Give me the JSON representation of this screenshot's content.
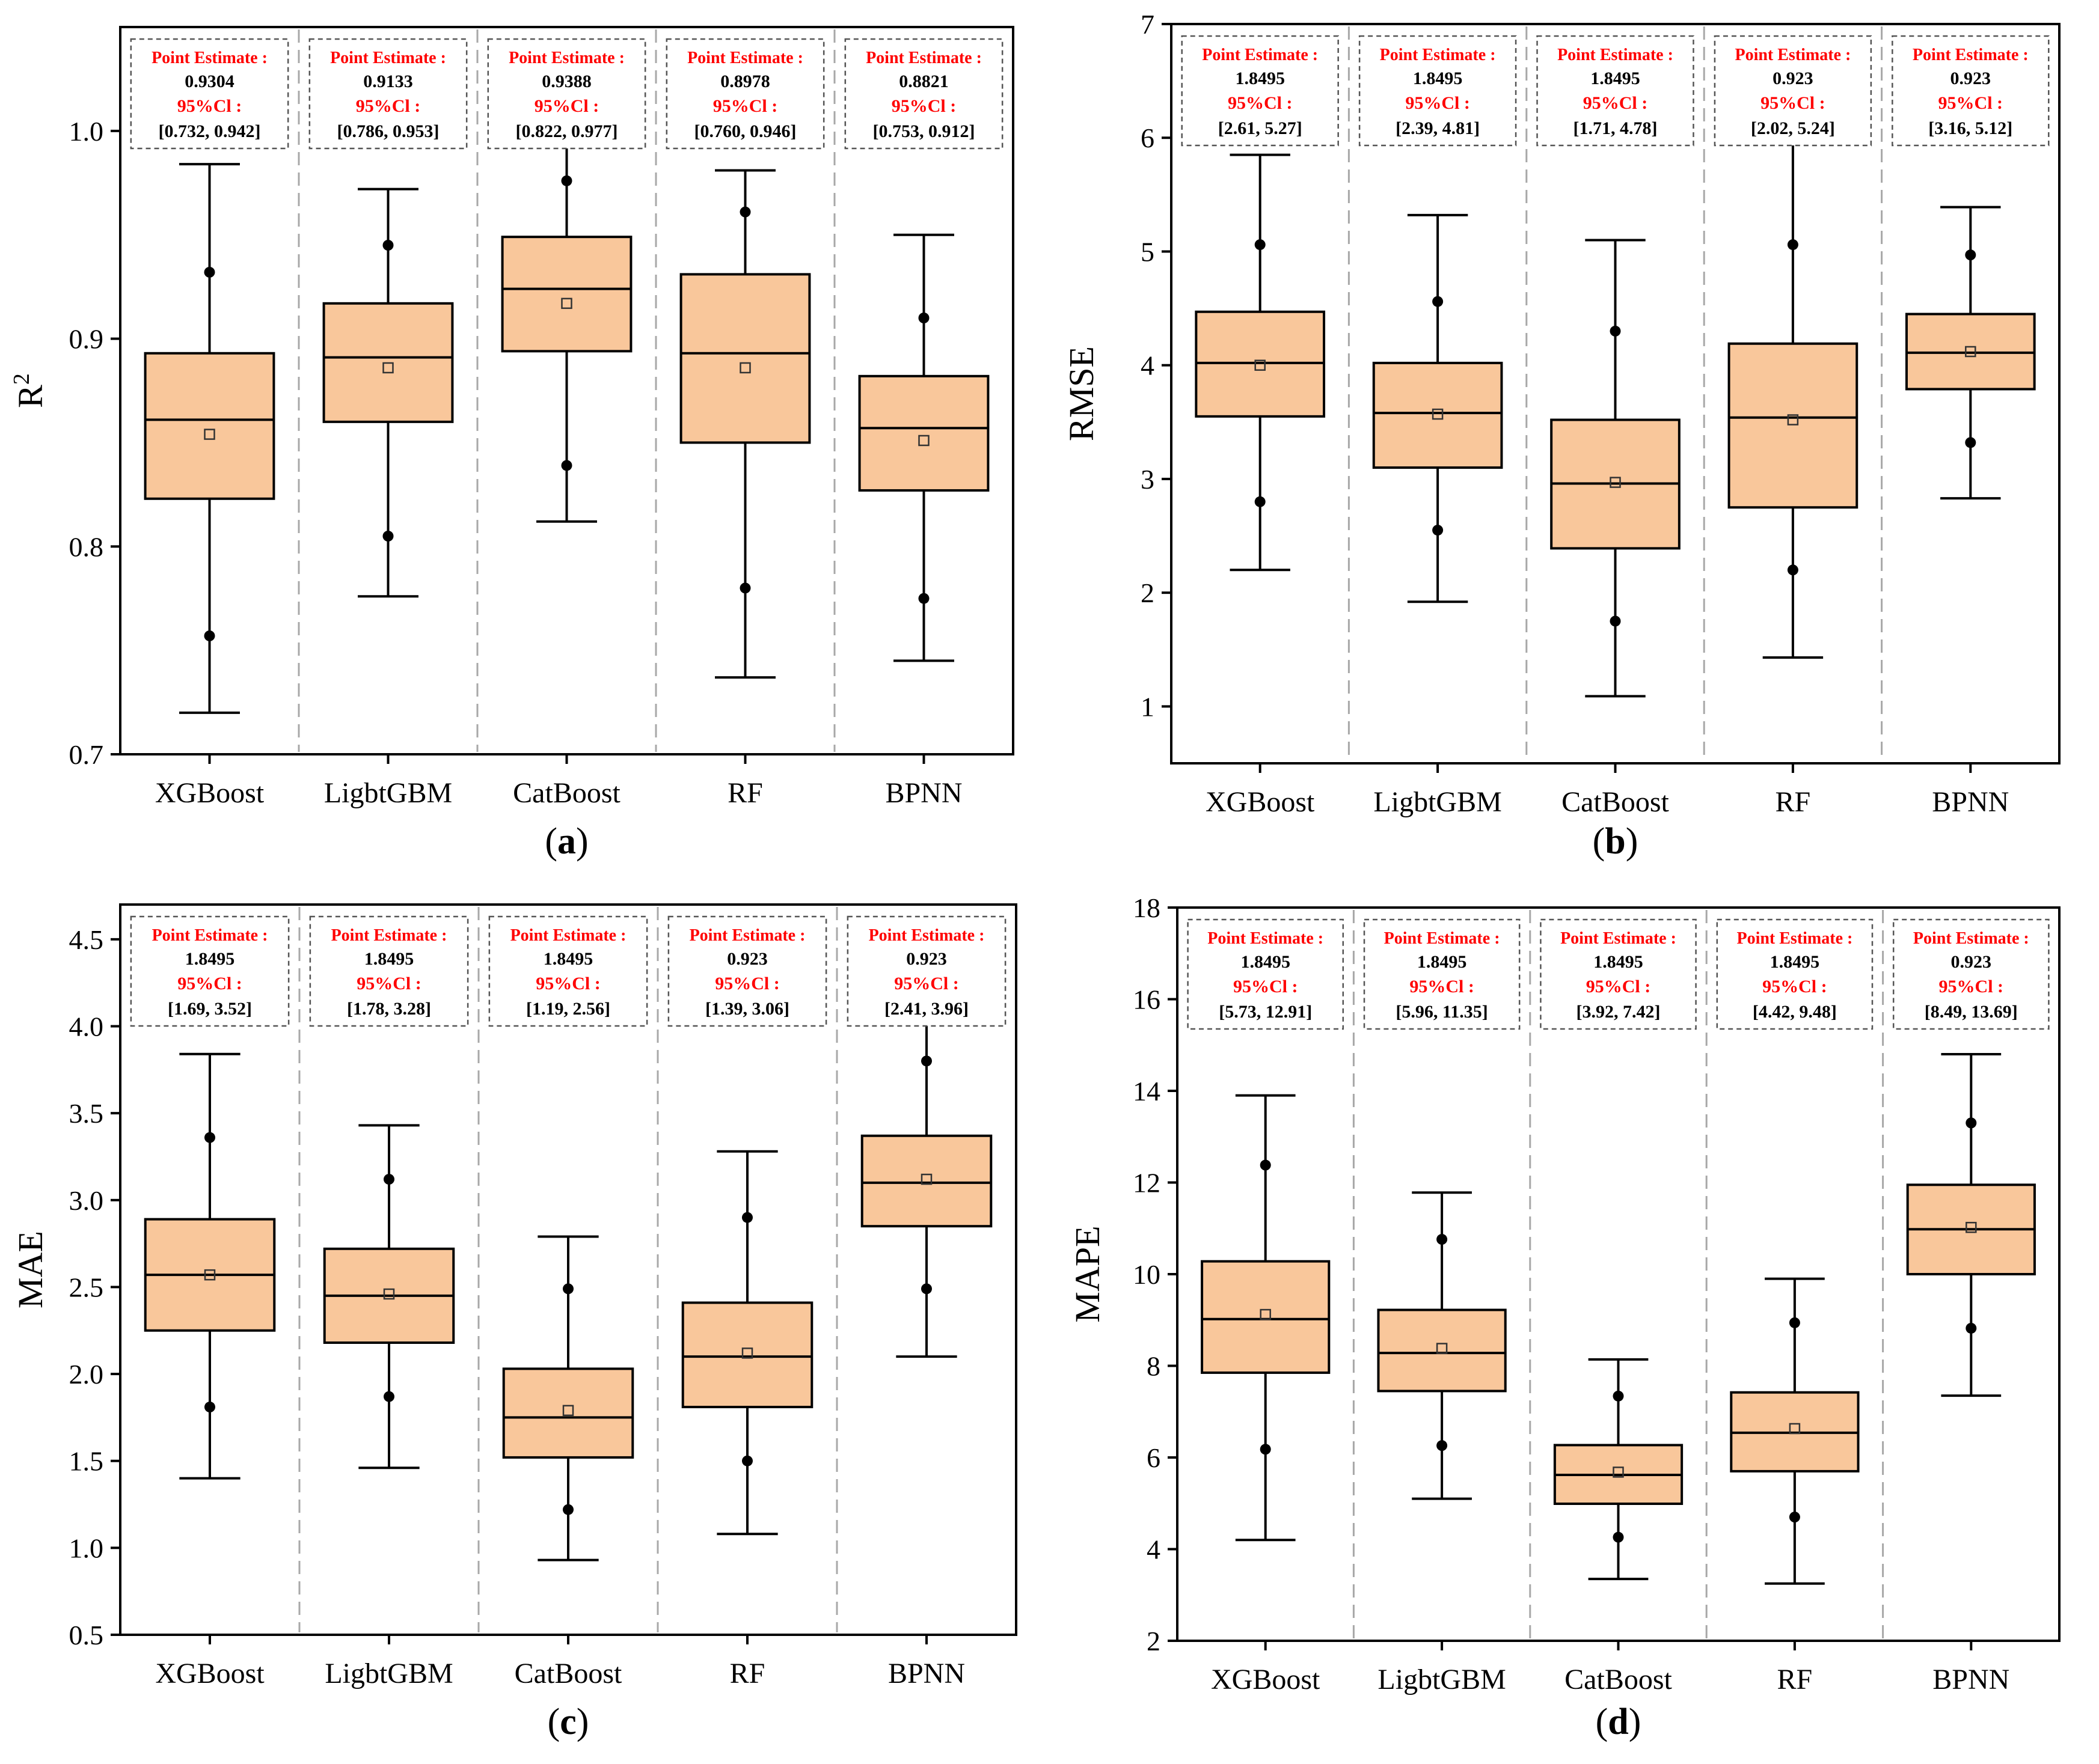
{
  "colors": {
    "box_fill": "#f9c79b",
    "box_stroke": "#000000",
    "separator": "#a8a8a8",
    "annotation_label": "#ff0000",
    "annotation_text": "#000000",
    "annotation_border": "#555555"
  },
  "annotation_labels": {
    "point_estimate": "Point Estimate :",
    "ci": "95%Cl :"
  },
  "chart_data": [
    {
      "panel_label": "(a)",
      "type": "box",
      "ylabel_base": "R",
      "ylabel_sup": "2",
      "ylim": [
        0.7,
        1.05
      ],
      "yticks": [
        0.7,
        0.8,
        0.9,
        1.0
      ],
      "ytick_labels": [
        "0.7",
        "0.8",
        "0.9",
        "1.0"
      ],
      "categories": [
        "XGBoost",
        "LigbtGBM",
        "CatBoost",
        "RF",
        "BPNN"
      ],
      "boxes": [
        {
          "whisker_low": 0.72,
          "q1": 0.823,
          "median": 0.861,
          "q3": 0.893,
          "whisker_high": 0.984,
          "mean": 0.854,
          "p_low": 0.757,
          "p_high": 0.932
        },
        {
          "whisker_low": 0.776,
          "q1": 0.86,
          "median": 0.891,
          "q3": 0.917,
          "whisker_high": 0.972,
          "mean": 0.886,
          "p_low": 0.805,
          "p_high": 0.945
        },
        {
          "whisker_low": 0.812,
          "q1": 0.894,
          "median": 0.924,
          "q3": 0.949,
          "whisker_high": 0.993,
          "mean": 0.917,
          "p_low": 0.839,
          "p_high": 0.976
        },
        {
          "whisker_low": 0.737,
          "q1": 0.85,
          "median": 0.893,
          "q3": 0.931,
          "whisker_high": 0.981,
          "mean": 0.886,
          "p_low": 0.78,
          "p_high": 0.961
        },
        {
          "whisker_low": 0.745,
          "q1": 0.827,
          "median": 0.857,
          "q3": 0.882,
          "whisker_high": 0.95,
          "mean": 0.851,
          "p_low": 0.775,
          "p_high": 0.91
        }
      ],
      "annotations": [
        {
          "point_estimate": "0.9304",
          "ci": "[0.732, 0.942]"
        },
        {
          "point_estimate": "0.9133",
          "ci": "[0.786, 0.953]"
        },
        {
          "point_estimate": "0.9388",
          "ci": "[0.822, 0.977]"
        },
        {
          "point_estimate": "0.8978",
          "ci": "[0.760, 0.946]"
        },
        {
          "point_estimate": "0.8821",
          "ci": "[0.753, 0.912]"
        }
      ]
    },
    {
      "panel_label": "(b)",
      "type": "box",
      "ylabel_base": "RMSE",
      "ylabel_sup": "",
      "ylim": [
        0.5,
        7
      ],
      "yticks": [
        1,
        2,
        3,
        4,
        5,
        6,
        7
      ],
      "ytick_labels": [
        "1",
        "2",
        "3",
        "4",
        "5",
        "6",
        "7"
      ],
      "categories": [
        "XGBoost",
        "LigbtGBM",
        "CatBoost",
        "RF",
        "BPNN"
      ],
      "boxes": [
        {
          "whisker_low": 2.2,
          "q1": 3.55,
          "median": 4.02,
          "q3": 4.47,
          "whisker_high": 5.85,
          "mean": 4.0,
          "p_low": 2.8,
          "p_high": 5.06
        },
        {
          "whisker_low": 1.92,
          "q1": 3.1,
          "median": 3.58,
          "q3": 4.02,
          "whisker_high": 5.32,
          "mean": 3.57,
          "p_low": 2.55,
          "p_high": 4.56
        },
        {
          "whisker_low": 1.09,
          "q1": 2.39,
          "median": 2.96,
          "q3": 3.52,
          "whisker_high": 5.1,
          "mean": 2.97,
          "p_low": 1.75,
          "p_high": 4.3
        },
        {
          "whisker_low": 1.43,
          "q1": 2.75,
          "median": 3.54,
          "q3": 4.19,
          "whisker_high": 6.0,
          "mean": 3.52,
          "p_low": 2.2,
          "p_high": 5.06
        },
        {
          "whisker_low": 2.83,
          "q1": 3.79,
          "median": 4.11,
          "q3": 4.45,
          "whisker_high": 5.39,
          "mean": 4.12,
          "p_low": 3.32,
          "p_high": 4.97
        }
      ],
      "annotations": [
        {
          "point_estimate": "1.8495",
          "ci": "[2.61, 5.27]"
        },
        {
          "point_estimate": "1.8495",
          "ci": "[2.39, 4.81]"
        },
        {
          "point_estimate": "1.8495",
          "ci": "[1.71, 4.78]"
        },
        {
          "point_estimate": "0.923",
          "ci": "[2.02, 5.24]"
        },
        {
          "point_estimate": "0.923",
          "ci": "[3.16, 5.12]"
        }
      ]
    },
    {
      "panel_label": "(c)",
      "type": "box",
      "ylabel_base": "MAE",
      "ylabel_sup": "",
      "ylim": [
        0.5,
        4.7
      ],
      "yticks": [
        0.5,
        1.0,
        1.5,
        2.0,
        2.5,
        3.0,
        3.5,
        4.0,
        4.5
      ],
      "ytick_labels": [
        "0.5",
        "1.0",
        "1.5",
        "2.0",
        "2.5",
        "3.0",
        "3.5",
        "4.0",
        "4.5"
      ],
      "categories": [
        "XGBoost",
        "LigbtGBM",
        "CatBoost",
        "RF",
        "BPNN"
      ],
      "boxes": [
        {
          "whisker_low": 1.4,
          "q1": 2.25,
          "median": 2.57,
          "q3": 2.89,
          "whisker_high": 3.84,
          "mean": 2.57,
          "p_low": 1.81,
          "p_high": 3.36
        },
        {
          "whisker_low": 1.46,
          "q1": 2.18,
          "median": 2.45,
          "q3": 2.72,
          "whisker_high": 3.43,
          "mean": 2.46,
          "p_low": 1.87,
          "p_high": 3.12
        },
        {
          "whisker_low": 0.93,
          "q1": 1.52,
          "median": 1.75,
          "q3": 2.03,
          "whisker_high": 2.79,
          "mean": 1.79,
          "p_low": 1.22,
          "p_high": 2.49
        },
        {
          "whisker_low": 1.08,
          "q1": 1.81,
          "median": 2.1,
          "q3": 2.41,
          "whisker_high": 3.28,
          "mean": 2.12,
          "p_low": 1.5,
          "p_high": 2.9
        },
        {
          "whisker_low": 2.1,
          "q1": 2.85,
          "median": 3.1,
          "q3": 3.37,
          "whisker_high": 4.08,
          "mean": 3.12,
          "p_low": 2.49,
          "p_high": 3.8
        }
      ],
      "annotations": [
        {
          "point_estimate": "1.8495",
          "ci": "[1.69, 3.52]"
        },
        {
          "point_estimate": "1.8495",
          "ci": "[1.78, 3.28]"
        },
        {
          "point_estimate": "1.8495",
          "ci": "[1.19, 2.56]"
        },
        {
          "point_estimate": "0.923",
          "ci": "[1.39, 3.06]"
        },
        {
          "point_estimate": "0.923",
          "ci": "[2.41, 3.96]"
        }
      ]
    },
    {
      "panel_label": "(d)",
      "type": "box",
      "ylabel_base": "MAPE",
      "ylabel_sup": "",
      "ylim": [
        2,
        18
      ],
      "yticks": [
        2,
        4,
        6,
        8,
        10,
        12,
        14,
        16,
        18
      ],
      "ytick_labels": [
        "2",
        "4",
        "6",
        "8",
        "10",
        "12",
        "14",
        "16",
        "18"
      ],
      "categories": [
        "XGBoost",
        "LigbtGBM",
        "CatBoost",
        "RF",
        "BPNN"
      ],
      "boxes": [
        {
          "whisker_low": 4.2,
          "q1": 7.85,
          "median": 9.02,
          "q3": 10.28,
          "whisker_high": 13.9,
          "mean": 9.12,
          "p_low": 6.18,
          "p_high": 12.38
        },
        {
          "whisker_low": 5.1,
          "q1": 7.45,
          "median": 8.28,
          "q3": 9.22,
          "whisker_high": 11.78,
          "mean": 8.38,
          "p_low": 6.26,
          "p_high": 10.76
        },
        {
          "whisker_low": 3.35,
          "q1": 4.99,
          "median": 5.62,
          "q3": 6.27,
          "whisker_high": 8.14,
          "mean": 5.68,
          "p_low": 4.26,
          "p_high": 7.34
        },
        {
          "whisker_low": 3.25,
          "q1": 5.7,
          "median": 6.54,
          "q3": 7.42,
          "whisker_high": 9.9,
          "mean": 6.63,
          "p_low": 4.7,
          "p_high": 8.94
        },
        {
          "whisker_low": 7.35,
          "q1": 10.0,
          "median": 10.98,
          "q3": 11.95,
          "whisker_high": 14.8,
          "mean": 11.02,
          "p_low": 8.82,
          "p_high": 13.3
        }
      ],
      "annotations": [
        {
          "point_estimate": "1.8495",
          "ci": "[5.73, 12.91]"
        },
        {
          "point_estimate": "1.8495",
          "ci": "[5.96, 11.35]"
        },
        {
          "point_estimate": "1.8495",
          "ci": "[3.92, 7.42]"
        },
        {
          "point_estimate": "1.8495",
          "ci": "[4.42, 9.48]"
        },
        {
          "point_estimate": "0.923",
          "ci": "[8.49, 13.69]"
        }
      ]
    }
  ]
}
